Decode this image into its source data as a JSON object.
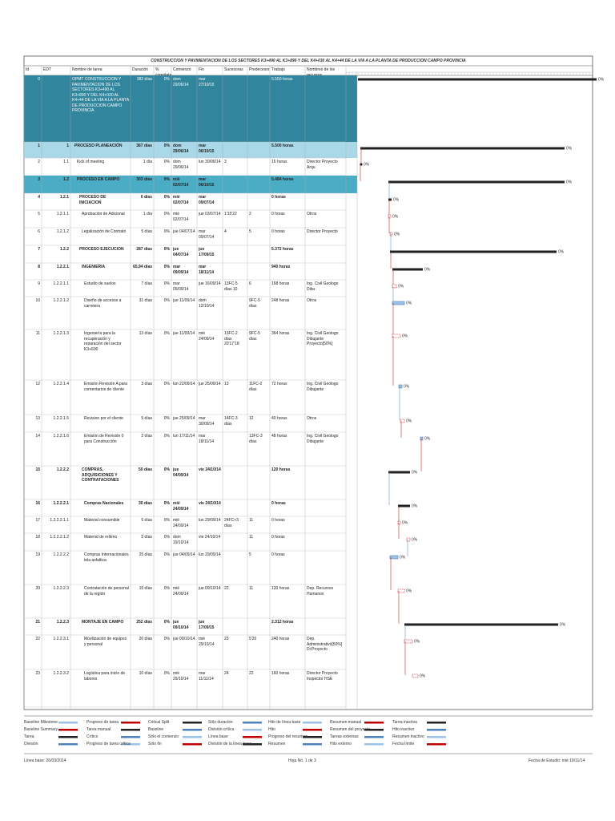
{
  "title": "CONSTRUCCION Y PAVIMENTACION DE LOS SECTORES K3+490 AL K3+890 Y DEL K4+030 AL K4+44 DE LA VIA A LA PLANTA DE PRODUCCION CAMPO PROVINCIA",
  "table": {
    "headers": [
      "Id",
      "EDT",
      "Nombre de tarea",
      "Duración",
      "% completado",
      "Comienzo",
      "Fin",
      "Sucesoras",
      "Predecesoras",
      "Trabajo",
      "Nombres de los recursos"
    ],
    "rows": [
      [
        "0",
        null,
        "OPMT CONSTRUCCION Y PAVIMENTACION DE LOS SECTORES K3+490 AL K3+890 Y DEL K4+030 AL K4+44 DE LA VIA A LA PLANTA DE PRODUCCION CAMPO PROVINCIA",
        "382 días",
        "0%",
        "dom 29/06/14",
        "mar 27/10/15",
        null,
        null,
        "5.550 horas",
        null
      ],
      [
        "1",
        "1",
        "PROCESO PLANEACIÓN",
        "367 días",
        "0%",
        "dom 29/06/14",
        "mar 06/10/15",
        null,
        null,
        "5.500 horas",
        null
      ],
      [
        "2",
        "1.1",
        "Kick of meeting",
        "1 día",
        "0%",
        "dom 29/06/14",
        "lun 30/06/14",
        "3",
        null,
        "16 horas",
        "Director Proyecto Arqu"
      ],
      [
        "3",
        "1.2",
        "PROCESO EN CAMPO",
        "303 días",
        "0%",
        "mié 02/07/14",
        "mar 06/10/15",
        null,
        null,
        "5.484 horas",
        null
      ],
      [
        "4",
        "1.2.1",
        "PROCESO DE INICIACION",
        "6 días",
        "0%",
        "mié 02/07/14",
        "mar 09/07/14",
        null,
        null,
        "0 horas",
        null
      ],
      [
        "5",
        "1.2.1.1",
        "Aprobación de Adicional",
        "1 día",
        "0%",
        "mié 02/07/14",
        "jue 03/07/14",
        "1'15'22",
        "2",
        "0 horas",
        "Otros"
      ],
      [
        "6",
        "1.2.1.2",
        "Legalización de Contrato",
        "5 días",
        "0%",
        "jue 04/07/14",
        "mar 09/07/14",
        "4",
        "5",
        "0 horas",
        "Director Proyecto"
      ],
      [
        "7",
        "1.2.2",
        "PROCESO EJECUCION",
        "287 días",
        "0%",
        "jue 04/07/14",
        "jue 17/09/15",
        null,
        null,
        "5.372 horas",
        null
      ],
      [
        "8",
        "1.2.2.1",
        "INGENIERIA",
        "65,94 días",
        "0%",
        "mar 09/09/14",
        "mar 18/11/14",
        null,
        null,
        "940 horas",
        null
      ],
      [
        "9",
        "1.2.2.1.1",
        "Estudio de suelos",
        "7 días",
        "0%",
        "mar 09/09/14",
        "jue 16/09/14",
        "13FC-5 días 10",
        "6",
        "168 horas",
        "Ing. Civil Geologo Dibu"
      ],
      [
        "10",
        "1.2.2.1.2",
        "Diseño de accesos a carretera",
        "31 días",
        "0%",
        "jue 11/09/14",
        "dom 12/10/14",
        null,
        "9FC-5 días",
        "248 horas",
        "Otros"
      ],
      [
        "11",
        "1.2.2.1.3",
        "Ingeniería para la recuperación y reparación del sector K3+600",
        "13 días",
        "0%",
        "jue 11/09/14",
        "mié 24/09/14",
        "13FC-2 días 20'17'18",
        "9FC-5 días",
        "364 horas",
        "Ing. Civil Geologo Dibujante Proyecto[50%]"
      ],
      [
        "12",
        "1.2.2.1.4",
        "Emisión Revisión A para comentarios de cliente",
        "3 días",
        "0%",
        "lun 22/09/14",
        "jue 25/09/14",
        "13",
        "11FC-2 días",
        "72 horas",
        "Ing. Civil Geologo Dibujante"
      ],
      [
        "13",
        "1.2.2.1.5",
        "Revision por el cliente",
        "5 días",
        "0%",
        "jue 25/09/14",
        "mar 30/09/14",
        "14FC-3 días",
        "12",
        "40 horas",
        "Otros"
      ],
      [
        "14",
        "1.2.2.1.6",
        "Emisión de Revisión 0 para Construcción",
        "2 días",
        "0%",
        "lun 17/11/14",
        "mar 18/11/14",
        null,
        "13FC-3 días",
        "48 horas",
        "Ing. Civil Geologo Dibujante"
      ],
      [
        "15",
        "1.2.2.2",
        "COMPRAS, ADQUISICIONES Y CONTRATACIONES",
        "50 días",
        "0%",
        "jue 04/09/14",
        "vie 24/10/14",
        null,
        null,
        "120 horas",
        null
      ],
      [
        "16",
        "1.2.2.2.1",
        "Compras Nacionales",
        "30 días",
        "0%",
        "mié 24/09/14",
        "vie 24/10/14",
        null,
        null,
        "0 horas",
        null
      ],
      [
        "17",
        "1.2.2.2.1.1",
        "Material consumible",
        "5 días",
        "0%",
        "mié 24/09/14",
        "lun 29/09/14",
        "24FC+3 días",
        "11",
        "0 horas",
        null
      ],
      [
        "18",
        "1.2.2.2.1.2",
        "Material de relleno",
        "5 días",
        "0%",
        "dom 19/10/14",
        "vie 24/10/14",
        null,
        "11",
        "0 horas",
        null
      ],
      [
        "19",
        "1.2.2.2.2",
        "Compras Internacionales tela asfaltica",
        "25 días",
        "0%",
        "jue 04/09/14",
        "lun 29/09/14",
        null,
        "5",
        "0 horas",
        null
      ],
      [
        "20",
        "1.2.2.2.3",
        "Contratación de personal de la región",
        "15 días",
        "0%",
        "mié 24/09/14",
        "jue 09/10/14",
        "22",
        "11",
        "120 horas",
        "Dep. Recursos Humanos"
      ],
      [
        "21",
        "1.2.2.3",
        "MONTAJE EN CAMPO",
        "252 días",
        "0%",
        "jue 09/10/14",
        "jue 17/09/15",
        null,
        null,
        "2.312 horas",
        null
      ],
      [
        "22",
        "1.2.2.3.1",
        "Movilización de equipos y personal",
        "20 días",
        "0%",
        "jue 09/10/14",
        "mié 29/10/14",
        "23",
        "5'20",
        "240 horas",
        "Dep. Administrativo[50%] Di Proyecto"
      ],
      [
        "23",
        "1.2.2.3.2",
        "Logística para inicio de labores",
        "10 días",
        "0%",
        "mié 29/10/14",
        "mar 11/11/14",
        "24",
        "22",
        "160 horas",
        "Director Proyecto Inspector HSE"
      ]
    ]
  },
  "legend": [
    "Baseline Milestone",
    "Baseline Summary",
    "Tarea",
    "División",
    "Progreso de tarea",
    "Tarea manual",
    "Crítico",
    "Progreso de tarea crítica",
    "Critical Split",
    "Baseline",
    "Sólo el comienzo",
    "Sólo fin",
    "Sólo duración",
    "División crítica",
    "Línea base",
    "División de la línea base",
    "Hito de línea base",
    "Hito",
    "Progreso del resumen",
    "Resumen",
    "Resumen manual",
    "Resumen del proyecto",
    "Tareas externas",
    "Hito externo",
    "Tarea inactiva",
    "Hito inactivo",
    "Resumen inactivo",
    "Fecha límite"
  ],
  "footer": {
    "left": "Línea base: 26/03/2014",
    "center": "Hoja No. 1 de 3",
    "right": "Fecha de Estudio: mié 19/11/14"
  }
}
